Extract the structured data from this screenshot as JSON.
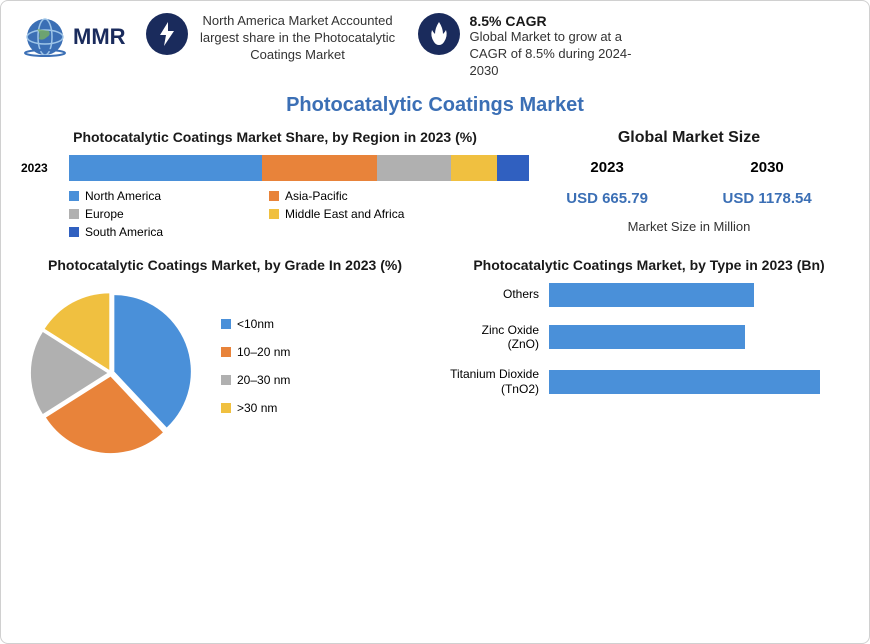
{
  "header": {
    "logo_text": "MMR",
    "badge1": {
      "icon": "bolt-icon",
      "text": "North America Market Accounted largest share in the Photocatalytic Coatings Market"
    },
    "badge2": {
      "icon": "flame-icon",
      "title": "8.5% CAGR",
      "text": "Global Market to grow at a CAGR of 8.5% during 2024-2030"
    }
  },
  "main_title": "Photocatalytic Coatings Market",
  "region_share": {
    "title": "Photocatalytic Coatings Market Share, by Region in 2023 (%)",
    "year_label": "2023",
    "segments": [
      {
        "label": "North America",
        "value": 42,
        "color": "#4a90d9"
      },
      {
        "label": "Asia-Pacific",
        "value": 25,
        "color": "#e8833a"
      },
      {
        "label": "Europe",
        "value": 16,
        "color": "#b0b0b0"
      },
      {
        "label": "Middle East and Africa",
        "value": 10,
        "color": "#f0c040"
      },
      {
        "label": "South America",
        "value": 7,
        "color": "#3060c0"
      }
    ]
  },
  "market_size": {
    "title": "Global Market Size",
    "years": [
      "2023",
      "2030"
    ],
    "values": [
      "USD 665.79",
      "USD 1178.54"
    ],
    "caption": "Market Size in Million"
  },
  "grade": {
    "title": "Photocatalytic Coatings Market, by Grade In 2023 (%)",
    "slices": [
      {
        "label": "<10nm",
        "value": 38,
        "color": "#4a90d9"
      },
      {
        "label": "10–20 nm",
        "value": 28,
        "color": "#e8833a"
      },
      {
        "label": "20–30 nm",
        "value": 18,
        "color": "#b0b0b0"
      },
      {
        "label": ">30 nm",
        "value": 16,
        "color": "#f0c040"
      }
    ]
  },
  "type": {
    "title": "Photocatalytic Coatings Market, by Type in 2023 (Bn)",
    "bars": [
      {
        "label": "Others",
        "value": 220,
        "color": "#4a90d9"
      },
      {
        "label": "Zinc Oxide (ZnO)",
        "value": 210,
        "color": "#4a90d9"
      },
      {
        "label": "Titanium Dioxide (TnO2)",
        "value": 290,
        "color": "#4a90d9"
      }
    ],
    "max": 300
  }
}
